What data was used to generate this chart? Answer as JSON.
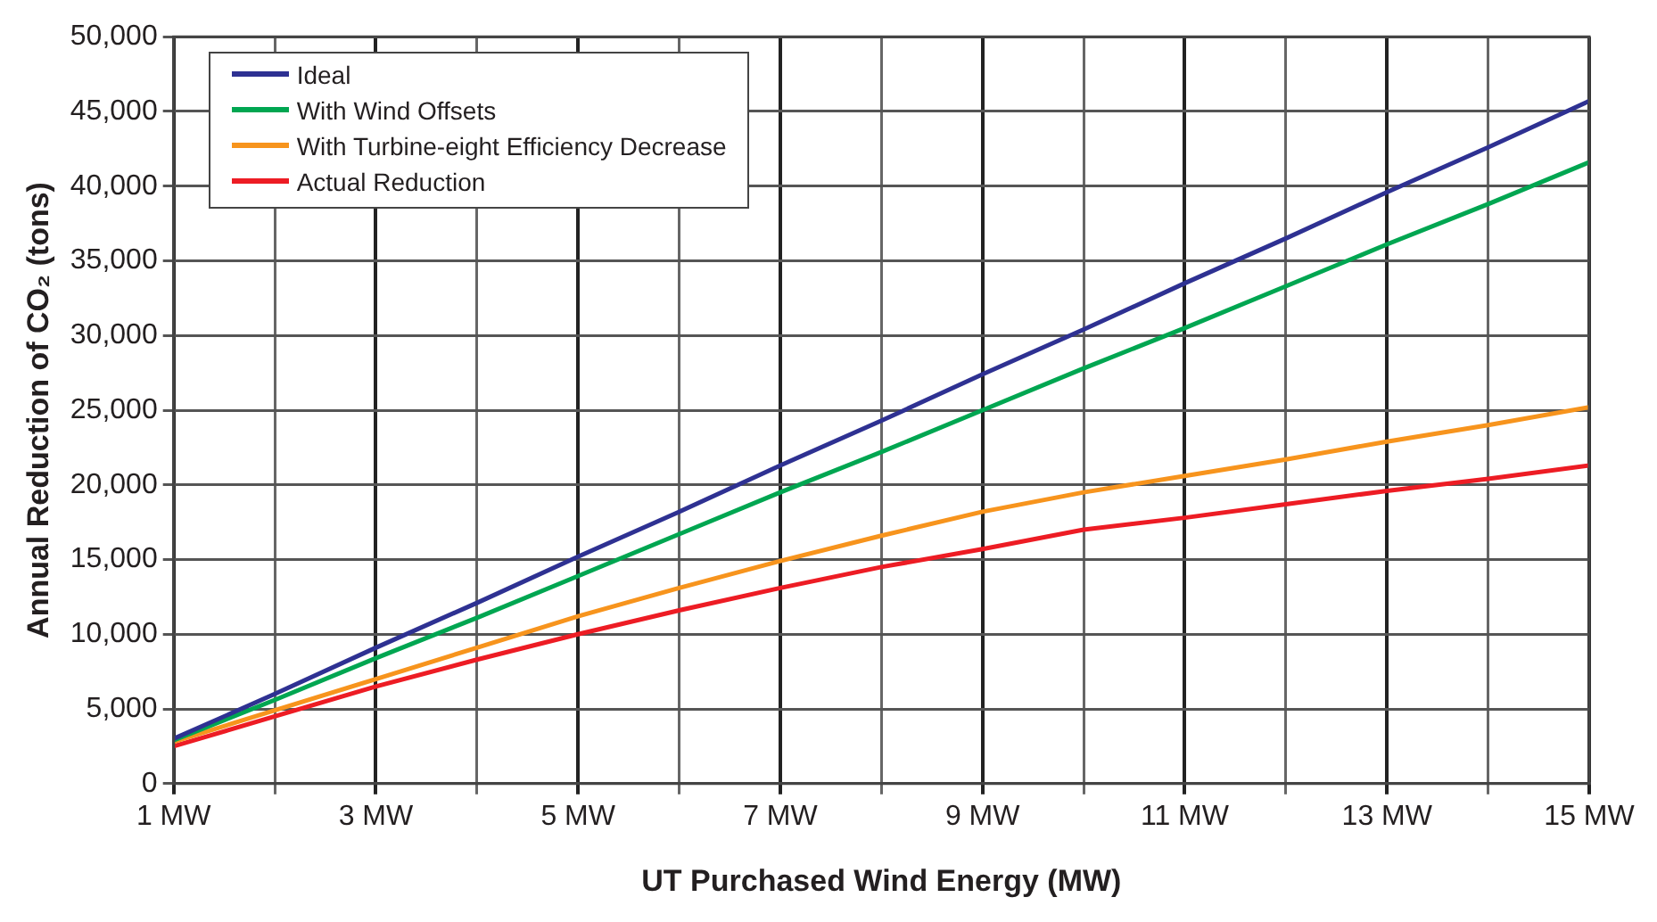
{
  "chart_data": {
    "type": "line",
    "xlabel": "UT Purchased Wind Energy (MW)",
    "ylabel": "Annual Reduction of CO₂ (tons)",
    "x": [
      1,
      2,
      3,
      4,
      5,
      6,
      7,
      8,
      9,
      10,
      11,
      12,
      13,
      14,
      15
    ],
    "series": [
      {
        "name": "Ideal",
        "color": "#2e3192",
        "values": [
          3000,
          6000,
          9100,
          12100,
          15200,
          18200,
          21300,
          24300,
          27400,
          30400,
          33500,
          36500,
          39600,
          42600,
          45700
        ]
      },
      {
        "name": "With Wind Offsets",
        "color": "#00a651",
        "values": [
          2900,
          5600,
          8400,
          11100,
          13900,
          16700,
          19500,
          22200,
          25000,
          27800,
          30500,
          33300,
          36100,
          38800,
          41600
        ]
      },
      {
        "name": "With Turbine-eight Efficiency Decrease",
        "color": "#f7941d",
        "values": [
          2800,
          4900,
          7000,
          9100,
          11200,
          13100,
          14900,
          16600,
          18200,
          19500,
          20600,
          21700,
          22900,
          24000,
          25200
        ]
      },
      {
        "name": "Actual Reduction",
        "color": "#ed1c24",
        "values": [
          2500,
          4500,
          6500,
          8300,
          10000,
          11600,
          13100,
          14500,
          15700,
          17000,
          17800,
          18700,
          19600,
          20400,
          21300
        ]
      }
    ],
    "xlim": [
      1,
      15
    ],
    "xticks": [
      {
        "value": 1,
        "label": "1 MW"
      },
      {
        "value": 2,
        "label": null
      },
      {
        "value": 3,
        "label": "3 MW"
      },
      {
        "value": 4,
        "label": null
      },
      {
        "value": 5,
        "label": "5 MW"
      },
      {
        "value": 6,
        "label": null
      },
      {
        "value": 7,
        "label": "7 MW"
      },
      {
        "value": 8,
        "label": null
      },
      {
        "value": 9,
        "label": "9 MW"
      },
      {
        "value": 10,
        "label": null
      },
      {
        "value": 11,
        "label": "11 MW"
      },
      {
        "value": 12,
        "label": null
      },
      {
        "value": 13,
        "label": "13 MW"
      },
      {
        "value": 14,
        "label": null
      },
      {
        "value": 15,
        "label": "15 MW"
      }
    ],
    "ylim": [
      0,
      50000
    ],
    "yticks": [
      {
        "value": 0,
        "label": "0"
      },
      {
        "value": 5000,
        "label": "5,000"
      },
      {
        "value": 10000,
        "label": "10,000"
      },
      {
        "value": 15000,
        "label": "15,000"
      },
      {
        "value": 20000,
        "label": "20,000"
      },
      {
        "value": 25000,
        "label": "25,000"
      },
      {
        "value": 30000,
        "label": "30,000"
      },
      {
        "value": 35000,
        "label": "35,000"
      },
      {
        "value": 40000,
        "label": "40,000"
      },
      {
        "value": 45000,
        "label": "45,000"
      },
      {
        "value": 50000,
        "label": "50,000"
      }
    ],
    "grid": true,
    "legend": "top left",
    "marker": "none",
    "line_style": "solid"
  }
}
